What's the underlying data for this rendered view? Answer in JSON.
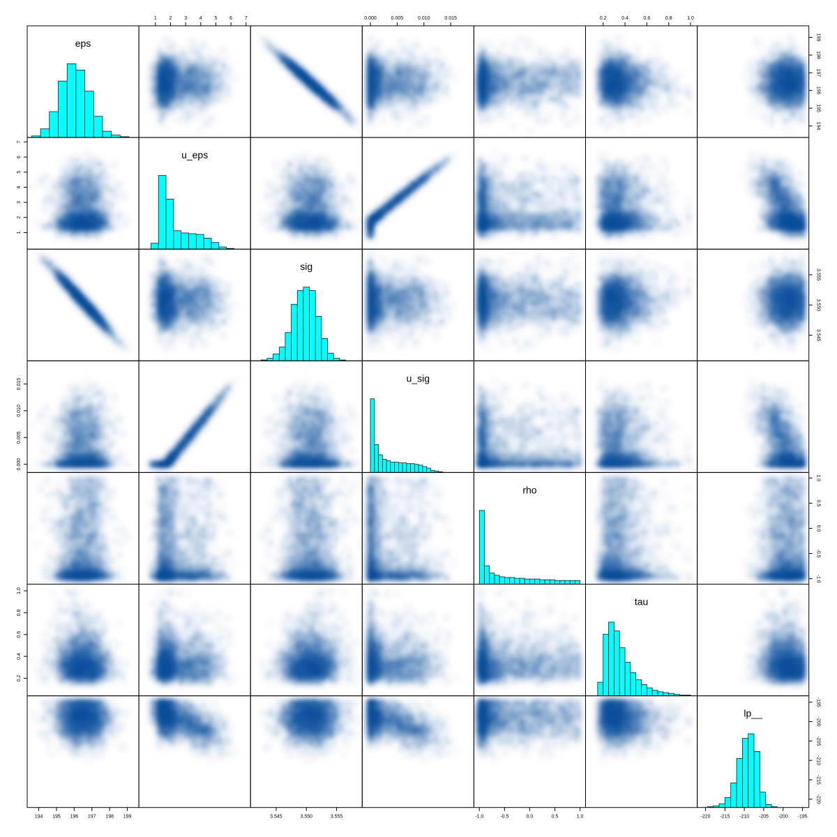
{
  "chart_data": {
    "type": "pairs",
    "variables": [
      "eps",
      "u_eps",
      "sig",
      "u_sig",
      "rho",
      "tau",
      "lp__"
    ],
    "ranges": {
      "eps": [
        193.6,
        199.4
      ],
      "u_eps": [
        0.2,
        7.0
      ],
      "sig": [
        3.5415,
        3.5585
      ],
      "u_sig": [
        -0.0007,
        0.0185
      ],
      "rho": [
        -1.02,
        1.02
      ],
      "tau": [
        0.08,
        1.02
      ],
      "lp__": [
        -221,
        -194.5
      ]
    },
    "ticks": {
      "eps": [
        194,
        195,
        196,
        197,
        198,
        199
      ],
      "u_eps": [
        1,
        2,
        3,
        4,
        5,
        6,
        7
      ],
      "sig": [
        3.545,
        3.55,
        3.555
      ],
      "u_sig": [
        0.0,
        0.005,
        0.01,
        0.015
      ],
      "rho": [
        -1.0,
        -0.5,
        0.0,
        0.5,
        1.0
      ],
      "tau": [
        0.2,
        0.4,
        0.6,
        0.8,
        1.0
      ],
      "lp__": [
        -220,
        -215,
        -210,
        -205,
        -200,
        -195
      ]
    },
    "tick_labels": {
      "eps": [
        "194",
        "195",
        "196",
        "197",
        "198",
        "199"
      ],
      "u_eps": [
        "1",
        "2",
        "3",
        "4",
        "5",
        "6",
        "7"
      ],
      "sig": [
        "3.545",
        "3.550",
        "3.555"
      ],
      "u_sig": [
        "0.000",
        "0.005",
        "0.010",
        "0.015"
      ],
      "rho": [
        "-1.0",
        "-0.5",
        "0.0",
        "0.5",
        "1.0"
      ],
      "tau": [
        "0.2",
        "0.4",
        "0.6",
        "0.8",
        "1.0"
      ],
      "lp__": [
        "-220",
        "-215",
        "-210",
        "-205",
        "-200",
        "-195"
      ]
    },
    "histograms": {
      "eps": {
        "start": 193.6,
        "width": 0.5,
        "counts": [
          0.02,
          0.11,
          0.33,
          0.72,
          0.94,
          0.86,
          0.59,
          0.27,
          0.08,
          0.03,
          0.01
        ]
      },
      "u_eps": {
        "start": 0.7,
        "width": 0.5,
        "counts": [
          0.08,
          1.0,
          0.68,
          0.25,
          0.22,
          0.21,
          0.2,
          0.15,
          0.09,
          0.03,
          0.01,
          0.0,
          0.0
        ]
      },
      "sig": {
        "start": 3.5425,
        "width": 0.001,
        "counts": [
          0.01,
          0.03,
          0.08,
          0.16,
          0.33,
          0.66,
          0.82,
          0.86,
          0.82,
          0.52,
          0.26,
          0.09,
          0.03,
          0.01,
          0.0
        ]
      },
      "u_sig": {
        "start": 0.0,
        "width": 0.00075,
        "counts": [
          1.0,
          0.38,
          0.24,
          0.18,
          0.16,
          0.14,
          0.14,
          0.13,
          0.13,
          0.12,
          0.12,
          0.11,
          0.1,
          0.08,
          0.06,
          0.03,
          0.02,
          0.01,
          0.0,
          0.0,
          0.0,
          0.0
        ]
      },
      "rho": {
        "start": -1.0,
        "width": 0.1,
        "counts": [
          1.0,
          0.25,
          0.15,
          0.12,
          0.1,
          0.09,
          0.09,
          0.08,
          0.08,
          0.07,
          0.07,
          0.07,
          0.06,
          0.06,
          0.06,
          0.05,
          0.05,
          0.05,
          0.05,
          0.05
        ]
      },
      "tau": {
        "start": 0.15,
        "width": 0.05,
        "counts": [
          0.17,
          0.77,
          0.92,
          0.81,
          0.6,
          0.42,
          0.29,
          0.2,
          0.14,
          0.1,
          0.07,
          0.05,
          0.04,
          0.03,
          0.02,
          0.01,
          0.01
        ]
      },
      "lp__": {
        "start": -221.0,
        "width": 1.5,
        "counts": [
          0.0,
          0.01,
          0.02,
          0.05,
          0.13,
          0.32,
          0.64,
          0.9,
          0.96,
          0.73,
          0.2,
          0.04,
          0.01
        ]
      }
    },
    "colors": {
      "histogram_fill": "#00FFFF",
      "density": "#08519C",
      "border": "#000000"
    }
  }
}
